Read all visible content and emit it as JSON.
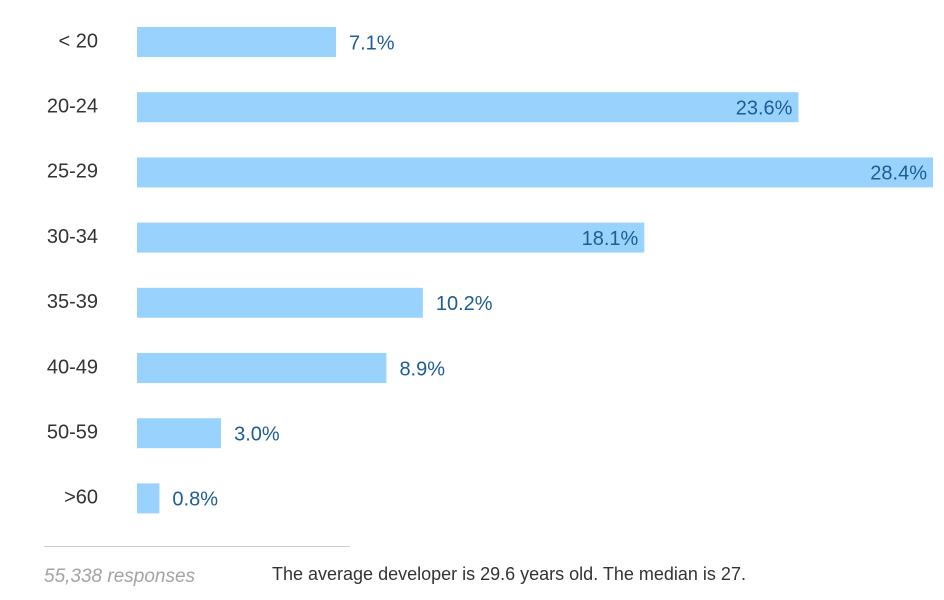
{
  "chart_data": {
    "type": "bar",
    "orientation": "horizontal",
    "categories": [
      "< 20",
      "20-24",
      "25-29",
      "30-34",
      "35-39",
      "40-49",
      "50-59",
      ">60"
    ],
    "values": [
      7.1,
      23.6,
      28.4,
      18.1,
      10.2,
      8.9,
      3.0,
      0.8
    ],
    "value_labels": [
      "7.1%",
      "23.6%",
      "28.4%",
      "18.1%",
      "10.2%",
      "8.9%",
      "3.0%",
      "0.8%"
    ],
    "xlim": [
      0,
      28.4
    ],
    "grid": false,
    "colors": {
      "bar": "#99d3fd",
      "value_label": "#1d5c96",
      "category_label": "#333333"
    }
  },
  "footer": {
    "responses": "55,338 responses",
    "note": "The average developer is 29.6 years old. The median is 27."
  }
}
